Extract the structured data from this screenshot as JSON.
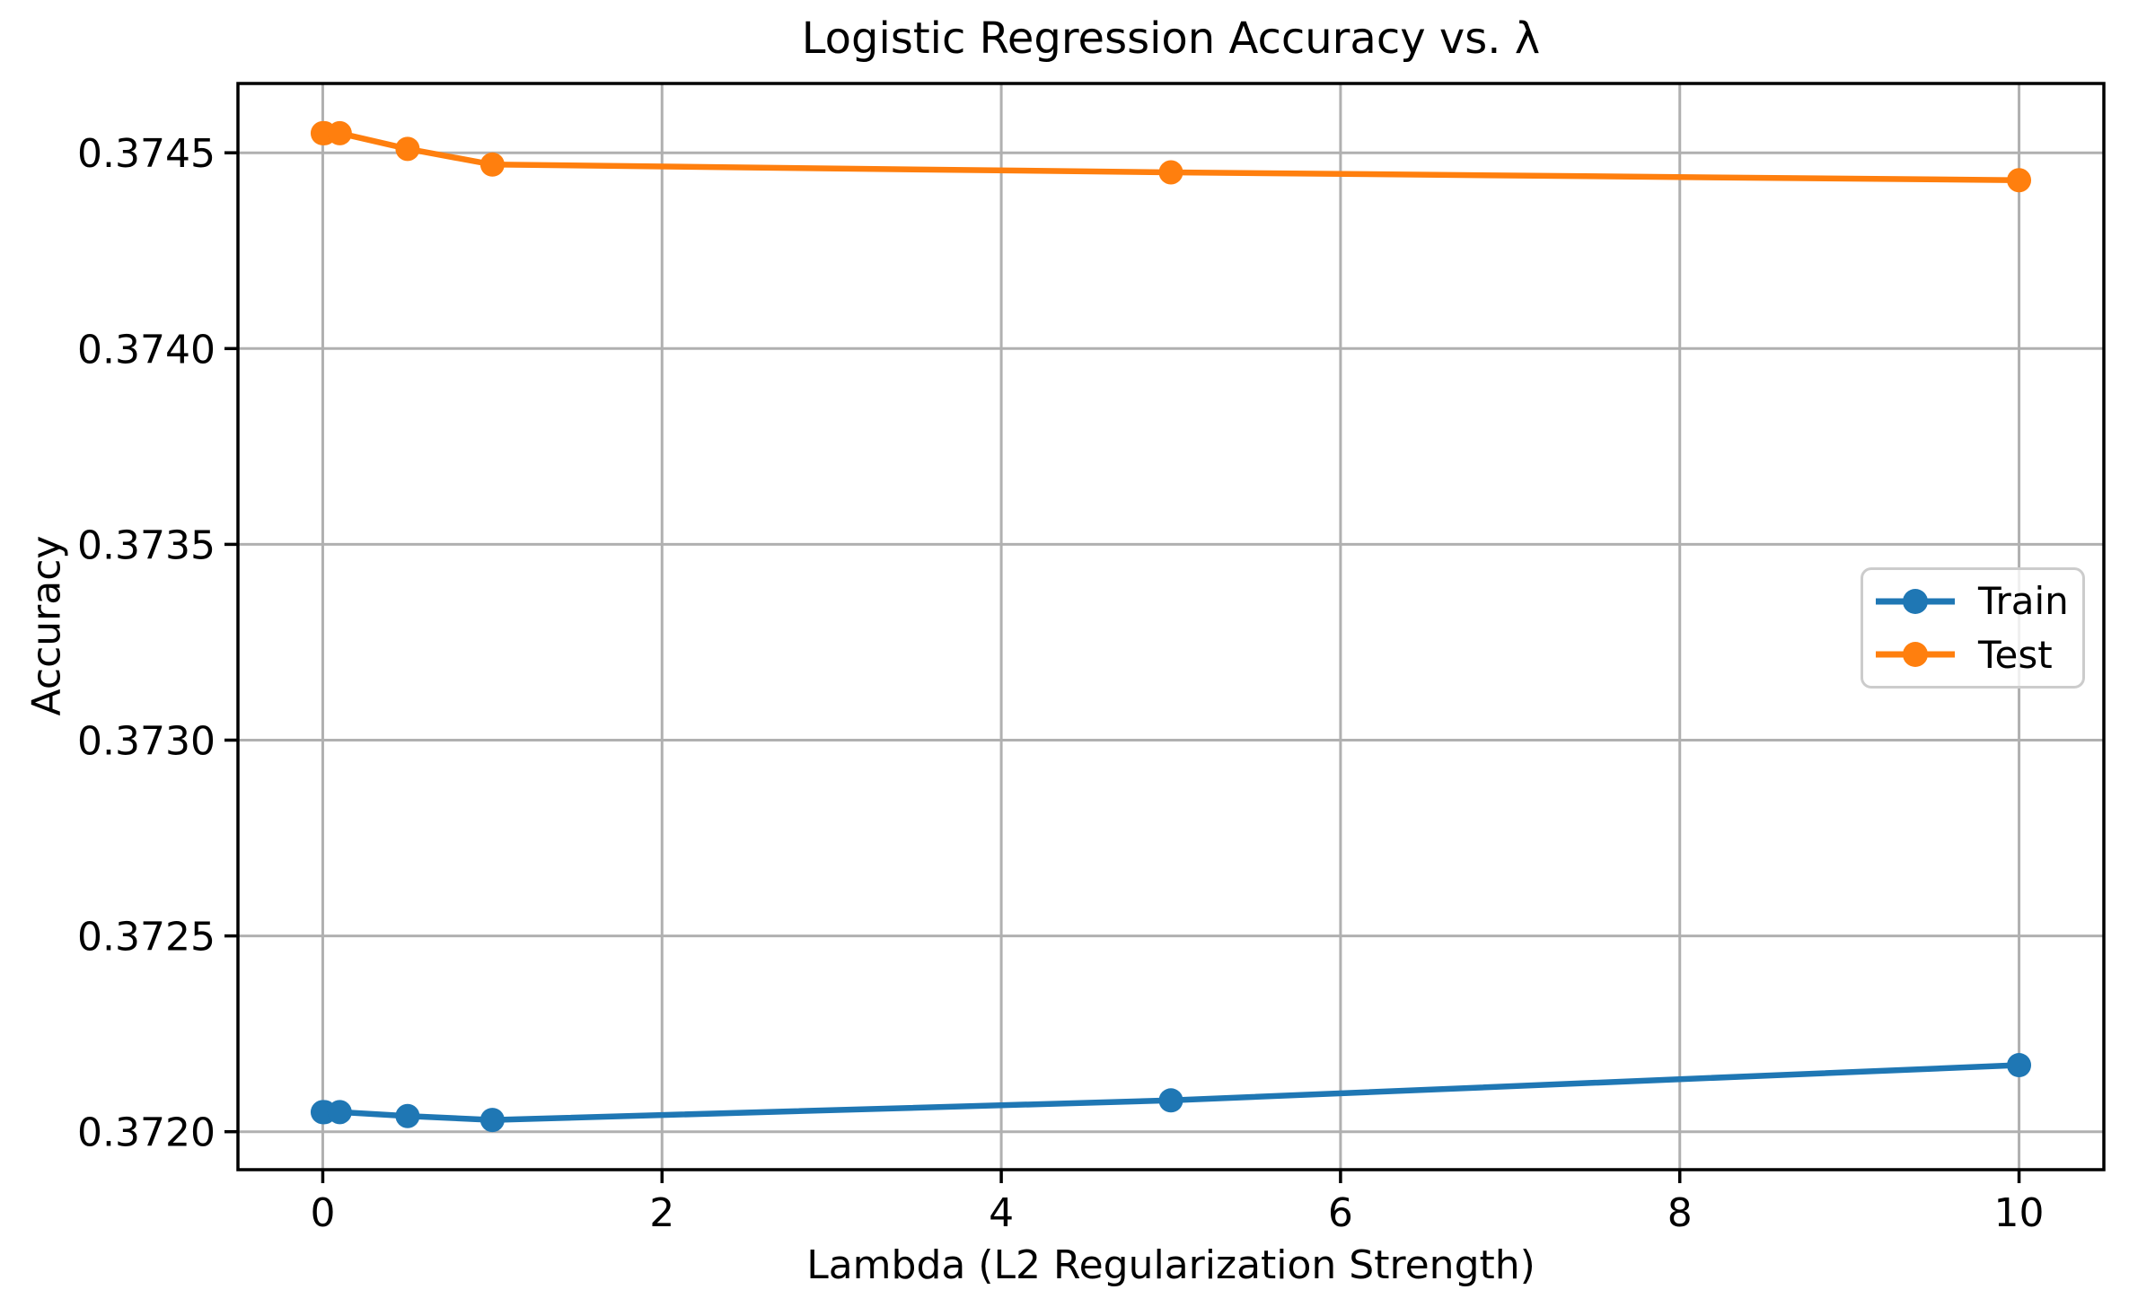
{
  "figure": {
    "title": "Logistic Regression Accuracy vs. λ",
    "xlabel": "Lambda (L2 Regularization Strength)",
    "ylabel": "Accuracy"
  },
  "legend": {
    "position": "center right",
    "items": [
      {
        "label": "Train",
        "color": "#1f77b4"
      },
      {
        "label": "Test",
        "color": "#ff7f0e"
      }
    ]
  },
  "chart_data": {
    "type": "line",
    "title": "Logistic Regression Accuracy vs. λ",
    "xlabel": "Lambda (L2 Regularization Strength)",
    "ylabel": "Accuracy",
    "x": [
      0,
      0.01,
      0.1,
      0.5,
      1,
      5,
      10
    ],
    "series": [
      {
        "name": "Train",
        "color": "#1f77b4",
        "marker": "circle",
        "values": [
          0.37205,
          0.37205,
          0.37205,
          0.37204,
          0.37203,
          0.37208,
          0.37217
        ]
      },
      {
        "name": "Test",
        "color": "#ff7f0e",
        "marker": "circle",
        "values": [
          0.37455,
          0.37455,
          0.37455,
          0.37451,
          0.37447,
          0.37445,
          0.37443
        ]
      }
    ],
    "xlim": [
      -0.5,
      10.5
    ],
    "ylim": [
      0.371903,
      0.374677
    ],
    "xticks": [
      0,
      2,
      4,
      6,
      8,
      10
    ],
    "xtick_labels": [
      "0",
      "2",
      "4",
      "6",
      "8",
      "10"
    ],
    "yticks": [
      0.372,
      0.3725,
      0.373,
      0.3735,
      0.374,
      0.3745
    ],
    "ytick_labels": [
      "0.3720",
      "0.3725",
      "0.3730",
      "0.3735",
      "0.3740",
      "0.3745"
    ],
    "grid": true,
    "grid_color": "#b0b0b0",
    "legend_position": "center right"
  },
  "style": {
    "background": "#ffffff",
    "spine_color": "#000000",
    "tick_color": "#000000",
    "text_color": "#000000",
    "legend_border_color": "#cccccc"
  }
}
